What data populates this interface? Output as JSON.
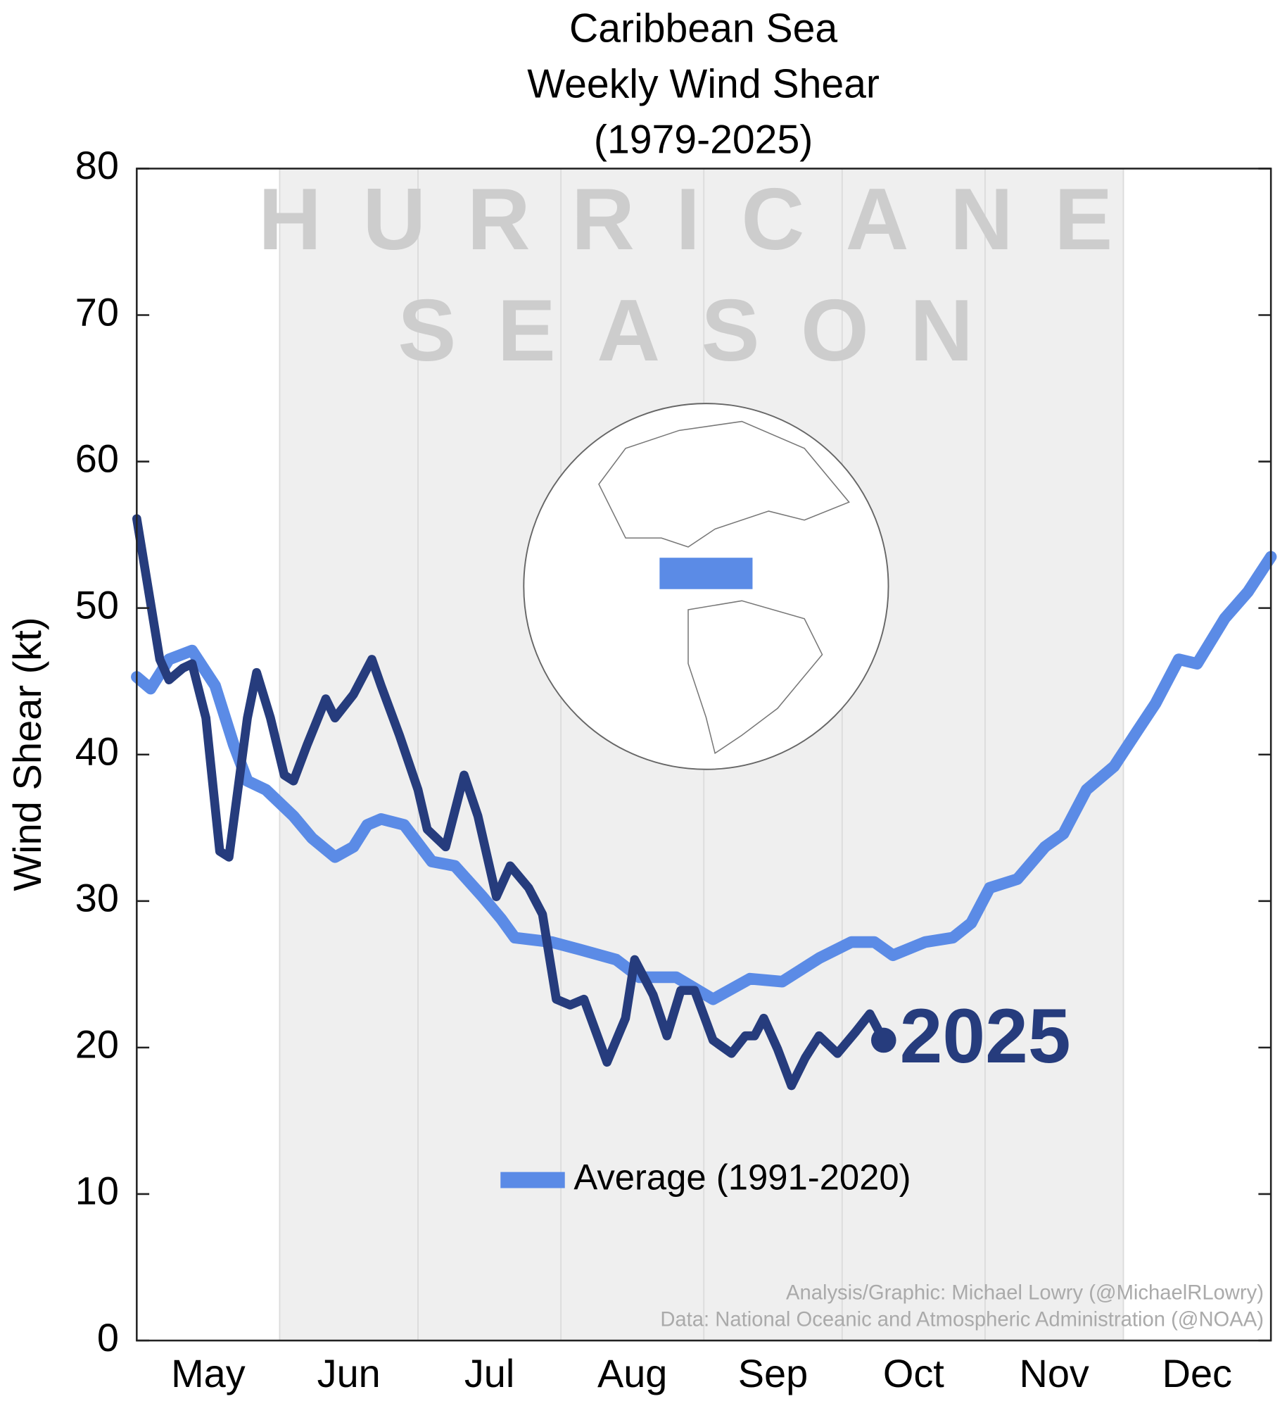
{
  "chart_data": {
    "type": "line",
    "title": [
      "Caribbean Sea",
      "Weekly Wind Shear",
      "(1979-2025)"
    ],
    "watermark": [
      "HURRICANE",
      "SEASON"
    ],
    "y_label": "Wind Shear (kt)",
    "credits": [
      "Analysis/Graphic: Michael Lowry (@MichaelRLowry)",
      "Data: National Oceanic and Atmospheric Administration (@NOAA)"
    ],
    "xlim": [
      0,
      246
    ],
    "xticks": [
      {
        "value": 15.5,
        "label": "May"
      },
      {
        "value": 46,
        "label": "Jun"
      },
      {
        "value": 76.5,
        "label": "Jul"
      },
      {
        "value": 107.5,
        "label": "Aug"
      },
      {
        "value": 138,
        "label": "Sep"
      },
      {
        "value": 168.5,
        "label": "Oct"
      },
      {
        "value": 199,
        "label": "Nov"
      },
      {
        "value": 230,
        "label": "Dec"
      }
    ],
    "month_starts": [
      31,
      61,
      92,
      123,
      153,
      184,
      214
    ],
    "season_span": [
      31,
      214
    ],
    "ylim": [
      0,
      80
    ],
    "yticks": [
      0,
      10,
      20,
      30,
      40,
      50,
      60,
      70,
      80
    ],
    "series": [
      {
        "name": "Average (1991-2020)",
        "color": "#5b8be6",
        "x": [
          0,
          3,
          7,
          12,
          17,
          21,
          24,
          28,
          34,
          38,
          43,
          47,
          50,
          53,
          58,
          64,
          69,
          75,
          79,
          82,
          90,
          96,
          104,
          109,
          117,
          125,
          133,
          140,
          148,
          155,
          160,
          164,
          171,
          177,
          181,
          185,
          191,
          197,
          201,
          206,
          212,
          217,
          221,
          226,
          230,
          236,
          241,
          246
        ],
        "values": [
          45.3,
          44.5,
          46.5,
          47.1,
          44.7,
          40.7,
          38.2,
          37.6,
          35.8,
          34.3,
          33.0,
          33.7,
          35.2,
          35.6,
          35.2,
          32.7,
          32.4,
          30.3,
          28.8,
          27.5,
          27.2,
          26.7,
          26.0,
          24.8,
          24.8,
          23.3,
          24.7,
          24.5,
          26.1,
          27.2,
          27.2,
          26.3,
          27.2,
          27.5,
          28.5,
          30.9,
          31.5,
          33.7,
          34.6,
          37.6,
          39.2,
          41.6,
          43.5,
          46.5,
          46.2,
          49.3,
          51.1,
          53.5
        ]
      },
      {
        "name": "2025",
        "color": "#263c7d",
        "x": [
          0,
          5,
          7,
          10,
          12,
          15,
          18,
          20,
          24,
          26,
          29,
          32,
          34,
          37,
          41,
          43,
          47,
          51,
          53,
          57,
          61,
          63,
          67,
          71,
          74,
          78,
          81,
          85,
          88,
          91,
          94,
          97,
          102,
          106,
          108,
          112,
          115,
          118,
          121,
          125,
          129,
          132,
          134,
          136,
          139,
          142,
          145,
          148,
          152,
          156,
          159,
          162
        ],
        "values": [
          56.1,
          46.5,
          45.1,
          45.9,
          46.2,
          42.5,
          33.4,
          33.0,
          42.5,
          45.6,
          42.5,
          38.6,
          38.2,
          40.7,
          43.8,
          42.5,
          44.1,
          46.5,
          44.7,
          41.3,
          37.6,
          34.9,
          33.7,
          38.6,
          35.8,
          30.3,
          32.4,
          30.9,
          29.1,
          23.3,
          22.9,
          23.3,
          19.0,
          22.0,
          26.0,
          23.6,
          20.8,
          23.9,
          23.9,
          20.5,
          19.6,
          20.8,
          20.8,
          22.0,
          19.9,
          17.4,
          19.3,
          20.8,
          19.6,
          21.1,
          22.3,
          20.5
        ]
      }
    ]
  }
}
